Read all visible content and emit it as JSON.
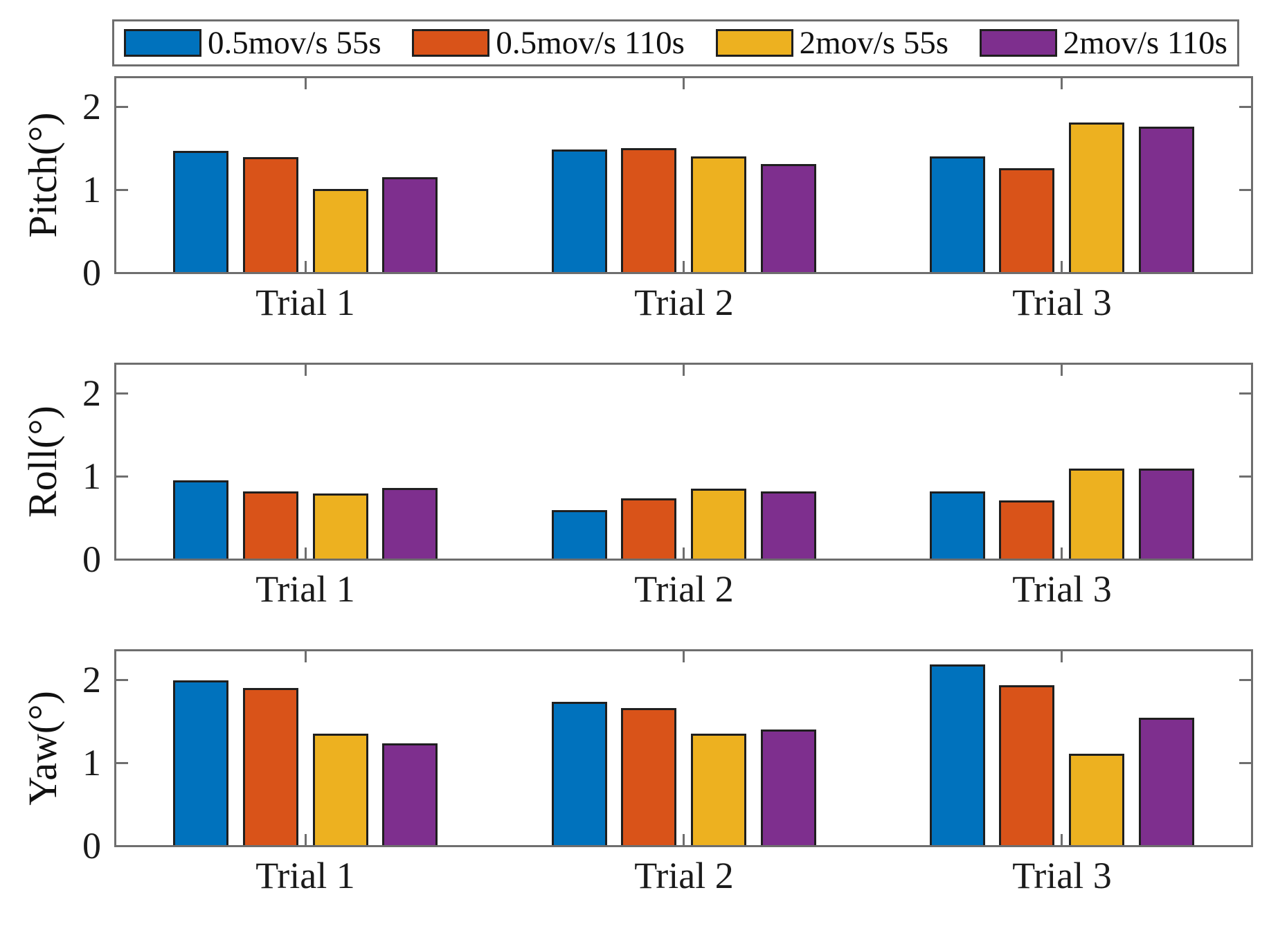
{
  "colors": {
    "series_blue": "#0072BD",
    "series_orange": "#D95319",
    "series_yellow": "#EDB120",
    "series_purple": "#7E2F8E",
    "axis": "#6e6e6e",
    "bar_edge": "#1f1f1f",
    "text": "#1b1b1b"
  },
  "legend": {
    "items": [
      {
        "label": "0.5mov/s 55s",
        "color": "#0072BD"
      },
      {
        "label": "0.5mov/s 110s",
        "color": "#D95319"
      },
      {
        "label": "2mov/s 55s",
        "color": "#EDB120"
      },
      {
        "label": "2mov/s 110s",
        "color": "#7E2F8E"
      }
    ],
    "position": "top-horizontal"
  },
  "chart_data": [
    {
      "type": "bar",
      "title": "",
      "xlabel": "",
      "ylabel": "Pitch(°)",
      "categories": [
        "Trial 1",
        "Trial 2",
        "Trial 3"
      ],
      "series": [
        {
          "name": "0.5mov/s 55s",
          "color": "#0072BD",
          "values": [
            1.46,
            1.47,
            1.39
          ]
        },
        {
          "name": "0.5mov/s 110s",
          "color": "#D95319",
          "values": [
            1.38,
            1.49,
            1.25
          ]
        },
        {
          "name": "2mov/s 55s",
          "color": "#EDB120",
          "values": [
            1.0,
            1.39,
            1.8
          ]
        },
        {
          "name": "2mov/s 110s",
          "color": "#7E2F8E",
          "values": [
            1.14,
            1.3,
            1.75
          ]
        }
      ],
      "yticks": [
        0,
        1,
        2
      ],
      "ylim": [
        0,
        2.33
      ],
      "grid": false,
      "legend_position": "shared-top"
    },
    {
      "type": "bar",
      "title": "",
      "xlabel": "",
      "ylabel": "Roll(°)",
      "categories": [
        "Trial 1",
        "Trial 2",
        "Trial 3"
      ],
      "series": [
        {
          "name": "0.5mov/s 55s",
          "color": "#0072BD",
          "values": [
            0.94,
            0.58,
            0.81
          ]
        },
        {
          "name": "0.5mov/s 110s",
          "color": "#D95319",
          "values": [
            0.81,
            0.72,
            0.7
          ]
        },
        {
          "name": "2mov/s 55s",
          "color": "#EDB120",
          "values": [
            0.78,
            0.84,
            1.08
          ]
        },
        {
          "name": "2mov/s 110s",
          "color": "#7E2F8E",
          "values": [
            0.85,
            0.81,
            1.08
          ]
        }
      ],
      "yticks": [
        0,
        1,
        2
      ],
      "ylim": [
        0,
        2.33
      ],
      "grid": false,
      "legend_position": "shared-top"
    },
    {
      "type": "bar",
      "title": "",
      "xlabel": "",
      "ylabel": "Yaw(°)",
      "categories": [
        "Trial 1",
        "Trial 2",
        "Trial 3"
      ],
      "series": [
        {
          "name": "0.5mov/s 55s",
          "color": "#0072BD",
          "values": [
            1.98,
            1.72,
            2.17
          ]
        },
        {
          "name": "0.5mov/s 110s",
          "color": "#D95319",
          "values": [
            1.89,
            1.65,
            1.92
          ]
        },
        {
          "name": "2mov/s 55s",
          "color": "#EDB120",
          "values": [
            1.34,
            1.34,
            1.1
          ]
        },
        {
          "name": "2mov/s 110s",
          "color": "#7E2F8E",
          "values": [
            1.22,
            1.39,
            1.53
          ]
        }
      ],
      "yticks": [
        0,
        1,
        2
      ],
      "ylim": [
        0,
        2.33
      ],
      "grid": false,
      "legend_position": "shared-top"
    }
  ]
}
